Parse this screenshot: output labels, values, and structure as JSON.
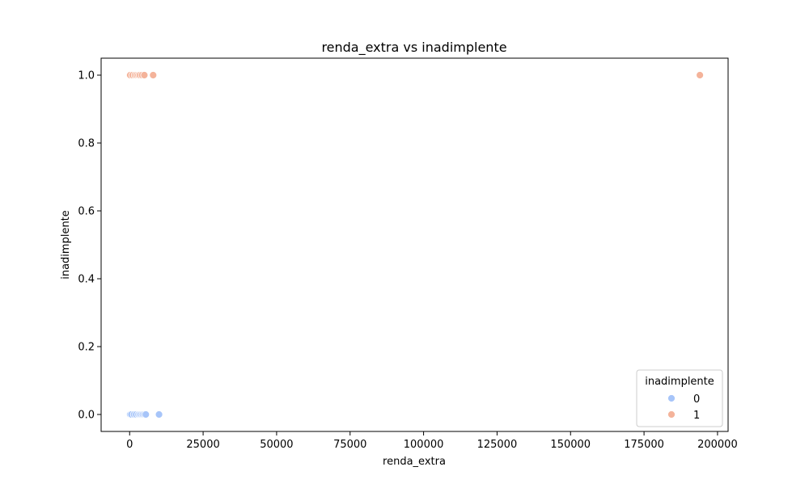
{
  "chart_data": {
    "type": "scatter",
    "title": "renda_extra vs inadimplente",
    "xlabel": "renda_extra",
    "ylabel": "inadimplente",
    "xlim": [
      -9700,
      203600
    ],
    "ylim": [
      -0.05,
      1.05
    ],
    "xticks": [
      0,
      25000,
      50000,
      75000,
      100000,
      125000,
      150000,
      175000,
      200000
    ],
    "xtick_labels": [
      "0",
      "25000",
      "50000",
      "75000",
      "100000",
      "125000",
      "150000",
      "175000",
      "200000"
    ],
    "yticks": [
      0.0,
      0.2,
      0.4,
      0.6,
      0.8,
      1.0
    ],
    "ytick_labels": [
      "0.0",
      "0.2",
      "0.4",
      "0.6",
      "0.8",
      "1.0"
    ],
    "grid": false,
    "legend": {
      "title": "inadimplente",
      "position": "bottom-right"
    },
    "series": [
      {
        "name": "0",
        "color": "#a7c5f9",
        "points": [
          [
            0,
            0
          ],
          [
            200,
            0
          ],
          [
            600,
            0
          ],
          [
            1500,
            0
          ],
          [
            2200,
            0
          ],
          [
            3000,
            0
          ],
          [
            3500,
            0
          ],
          [
            4000,
            0
          ],
          [
            4500,
            0
          ],
          [
            5000,
            0
          ],
          [
            5500,
            0
          ],
          [
            10000,
            0
          ]
        ]
      },
      {
        "name": "1",
        "color": "#f4b39a",
        "points": [
          [
            0,
            1
          ],
          [
            200,
            1
          ],
          [
            1000,
            1
          ],
          [
            1800,
            1
          ],
          [
            2400,
            1
          ],
          [
            3000,
            1
          ],
          [
            3500,
            1
          ],
          [
            4200,
            1
          ],
          [
            5000,
            1
          ],
          [
            8000,
            1
          ],
          [
            194000,
            1
          ]
        ]
      }
    ]
  }
}
